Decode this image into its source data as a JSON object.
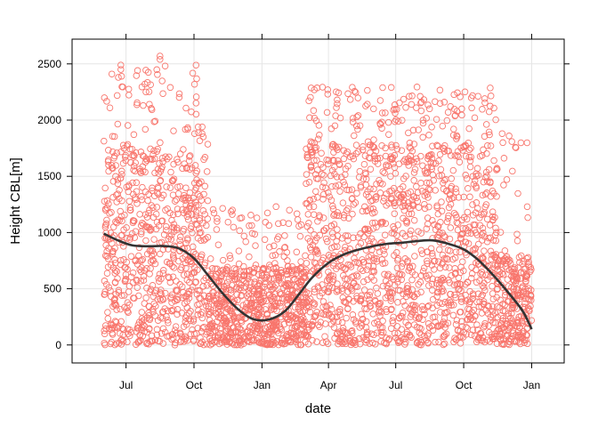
{
  "chart_data": {
    "type": "scatter",
    "title": "",
    "xlabel": "date",
    "ylabel": "Height CBL[m]",
    "x_ticks": [
      "Jul",
      "Oct",
      "Jan",
      "Apr",
      "Jul",
      "Oct",
      "Jan"
    ],
    "x_tick_dates": [
      "2016-07-01",
      "2016-10-01",
      "2017-01-01",
      "2017-04-01",
      "2017-07-01",
      "2017-10-01",
      "2018-01-01"
    ],
    "y_ticks": [
      0,
      500,
      1000,
      1500,
      2000,
      2500
    ],
    "xlim": [
      "2016-04-19",
      "2018-02-14"
    ],
    "ylim": [
      -160,
      2720
    ],
    "grid": true,
    "colors": {
      "points": "#f8766d",
      "smooth": "#333333",
      "grid": "#e6e6e6",
      "frame": "#000000"
    },
    "smooth_line": {
      "x": [
        "2016-06-01",
        "2016-06-20",
        "2016-07-10",
        "2016-08-01",
        "2016-08-20",
        "2016-09-10",
        "2016-10-01",
        "2016-10-20",
        "2016-11-10",
        "2016-12-01",
        "2016-12-20",
        "2017-01-10",
        "2017-02-01",
        "2017-02-20",
        "2017-03-10",
        "2017-04-01",
        "2017-04-20",
        "2017-05-10",
        "2017-06-01",
        "2017-06-20",
        "2017-07-10",
        "2017-08-01",
        "2017-08-20",
        "2017-09-10",
        "2017-10-01",
        "2017-10-20",
        "2017-11-10",
        "2017-12-01",
        "2017-12-20",
        "2018-01-01"
      ],
      "y": [
        990,
        930,
        885,
        878,
        880,
        860,
        770,
        620,
        450,
        310,
        230,
        225,
        300,
        450,
        600,
        730,
        800,
        845,
        880,
        900,
        910,
        925,
        930,
        900,
        850,
        760,
        620,
        460,
        300,
        140
      ]
    },
    "points": {
      "count": 3200,
      "series": [
        {
          "start": "2016-06-01",
          "end": "2016-10-20",
          "typical_max": 1750,
          "peak": 2500
        },
        {
          "start": "2016-10-20",
          "end": "2017-03-01",
          "typical_max": 700,
          "peak": 1250
        },
        {
          "start": "2017-03-01",
          "end": "2017-11-15",
          "typical_max": 1800,
          "peak": 2300
        },
        {
          "start": "2017-11-15",
          "end": "2018-01-01",
          "typical_max": 800,
          "peak": 1900
        }
      ],
      "marked_outliers": [
        {
          "x": "2016-06-24",
          "y": 2490
        },
        {
          "x": "2016-06-24",
          "y": 2450
        },
        {
          "x": "2016-06-25",
          "y": 2390
        },
        {
          "x": "2016-08-16",
          "y": 2570
        },
        {
          "x": "2016-08-16",
          "y": 2540
        },
        {
          "x": "2016-07-28",
          "y": 2250
        },
        {
          "x": "2016-08-30",
          "y": 2290
        },
        {
          "x": "2016-10-12",
          "y": 1880
        },
        {
          "x": "2017-03-31",
          "y": 2270
        },
        {
          "x": "2017-03-31",
          "y": 2230
        },
        {
          "x": "2017-06-25",
          "y": 2290
        },
        {
          "x": "2017-08-07",
          "y": 2000
        },
        {
          "x": "2017-06-01",
          "y": 2100
        },
        {
          "x": "2017-11-22",
          "y": 1880
        },
        {
          "x": "2017-11-23",
          "y": 1800
        },
        {
          "x": "2017-01-20",
          "y": 1230
        },
        {
          "x": "2016-11-22",
          "y": 1200
        }
      ]
    }
  }
}
